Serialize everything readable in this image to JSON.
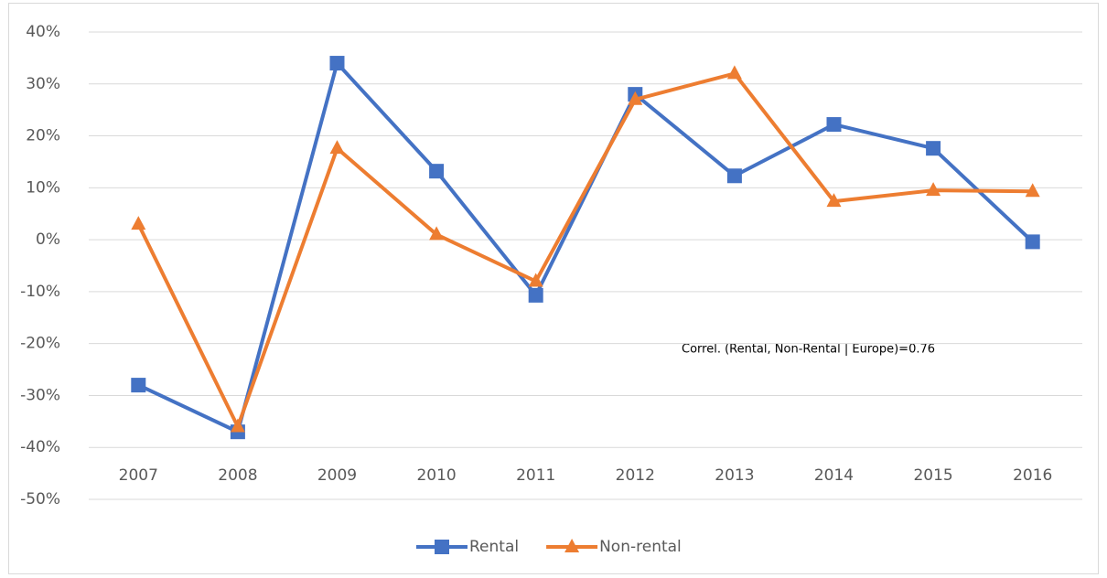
{
  "chart_data": {
    "type": "line",
    "categories": [
      "2007",
      "2008",
      "2009",
      "2010",
      "2011",
      "2012",
      "2013",
      "2014",
      "2015",
      "2016"
    ],
    "series": [
      {
        "name": "Rental",
        "color": "#4472c4",
        "marker": "square",
        "values": [
          -28,
          -37,
          34,
          13.2,
          -10.7,
          28,
          12.3,
          22.2,
          17.6,
          -0.4
        ]
      },
      {
        "name": "Non-rental",
        "color": "#ed7d31",
        "marker": "triangle",
        "values": [
          3,
          -36,
          17.6,
          1,
          -8,
          27,
          32,
          7.4,
          9.5,
          9.3
        ]
      }
    ],
    "ylim": [
      -50,
      40
    ],
    "yticks": [
      {
        "value": -50,
        "label": "-50%"
      },
      {
        "value": -40,
        "label": "-40%"
      },
      {
        "value": -30,
        "label": "-30%"
      },
      {
        "value": -20,
        "label": "-20%"
      },
      {
        "value": -10,
        "label": "-10%"
      },
      {
        "value": 0,
        "label": "0%"
      },
      {
        "value": 10,
        "label": "10%"
      },
      {
        "value": 20,
        "label": "20%"
      },
      {
        "value": 30,
        "label": "30%"
      },
      {
        "value": 40,
        "label": "40%"
      }
    ],
    "grid": true,
    "legend": "bottom",
    "annotation": "Correl. (Rental, Non-Rental | Europe)=0.76"
  }
}
